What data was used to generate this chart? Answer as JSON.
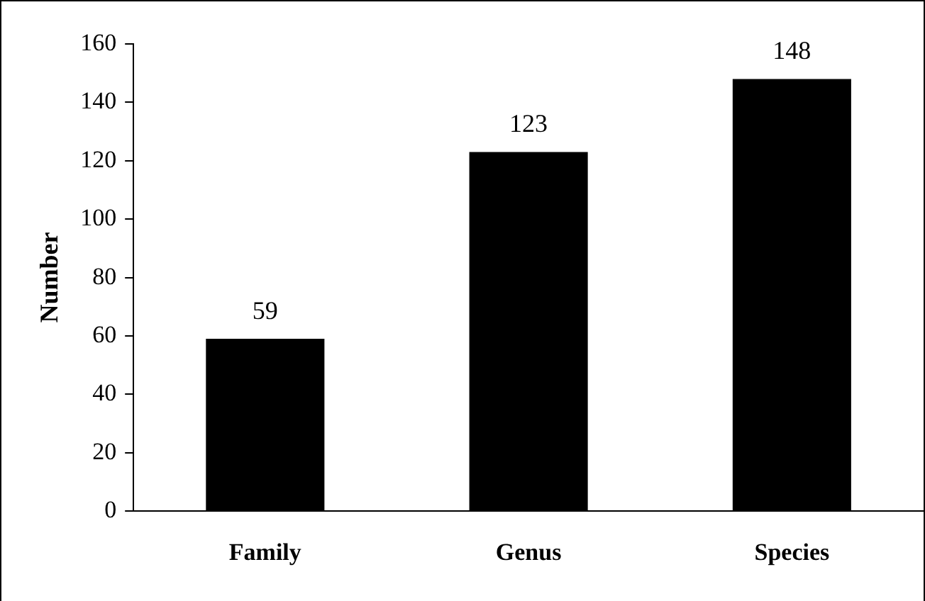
{
  "chart_data": {
    "type": "bar",
    "ylabel": "Number",
    "categories": [
      "Family",
      "Genus",
      "Species"
    ],
    "values": [
      59,
      123,
      148
    ],
    "color": "#000000",
    "ylim": [
      0,
      160
    ],
    "yticks": [
      0,
      20,
      40,
      60,
      80,
      100,
      120,
      140,
      160
    ],
    "grid": false,
    "data_labels": true
  }
}
